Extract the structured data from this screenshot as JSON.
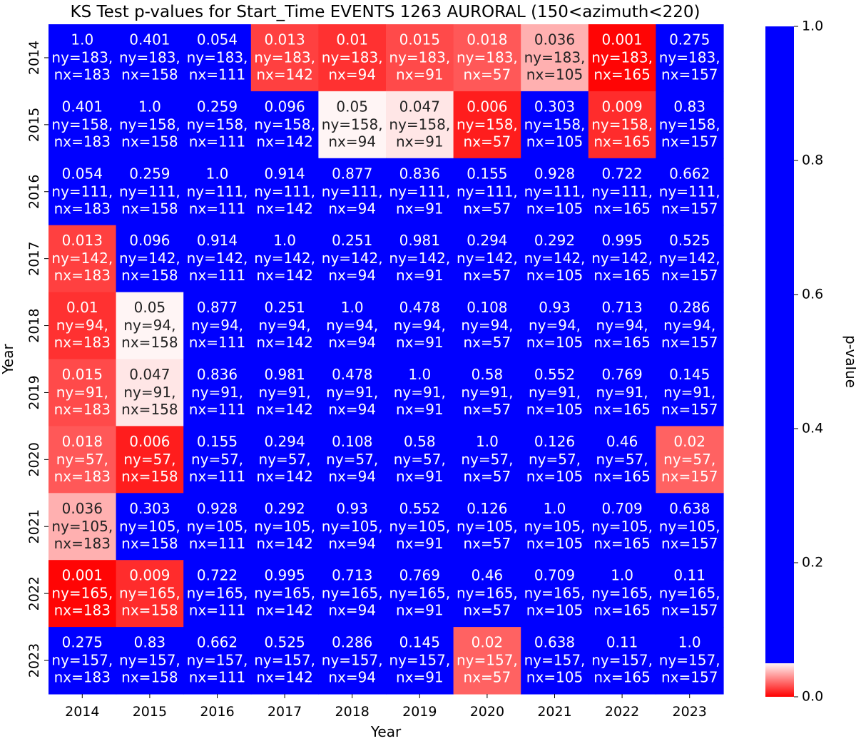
{
  "chart_data": {
    "type": "heatmap",
    "title": "KS Test p-values for Start_Time EVENTS 1263 AURORAL (150<azimuth<220)",
    "xlabel": "Year",
    "ylabel": "Year",
    "x_categories": [
      "2014",
      "2015",
      "2016",
      "2017",
      "2018",
      "2019",
      "2020",
      "2021",
      "2022",
      "2023"
    ],
    "y_categories": [
      "2014",
      "2015",
      "2016",
      "2017",
      "2018",
      "2019",
      "2020",
      "2021",
      "2022",
      "2023"
    ],
    "values": [
      [
        "1.0",
        "0.401",
        "0.054",
        "0.013",
        "0.01",
        "0.015",
        "0.018",
        "0.036",
        "0.001",
        "0.275"
      ],
      [
        "0.401",
        "1.0",
        "0.259",
        "0.096",
        "0.05",
        "0.047",
        "0.006",
        "0.303",
        "0.009",
        "0.83"
      ],
      [
        "0.054",
        "0.259",
        "1.0",
        "0.914",
        "0.877",
        "0.836",
        "0.155",
        "0.928",
        "0.722",
        "0.662"
      ],
      [
        "0.013",
        "0.096",
        "0.914",
        "1.0",
        "0.251",
        "0.981",
        "0.294",
        "0.292",
        "0.995",
        "0.525"
      ],
      [
        "0.01",
        "0.05",
        "0.877",
        "0.251",
        "1.0",
        "0.478",
        "0.108",
        "0.93",
        "0.713",
        "0.286"
      ],
      [
        "0.015",
        "0.047",
        "0.836",
        "0.981",
        "0.478",
        "1.0",
        "0.58",
        "0.552",
        "0.769",
        "0.145"
      ],
      [
        "0.018",
        "0.006",
        "0.155",
        "0.294",
        "0.108",
        "0.58",
        "1.0",
        "0.126",
        "0.46",
        "0.02"
      ],
      [
        "0.036",
        "0.303",
        "0.928",
        "0.292",
        "0.93",
        "0.552",
        "0.126",
        "1.0",
        "0.709",
        "0.638"
      ],
      [
        "0.001",
        "0.009",
        "0.722",
        "0.995",
        "0.713",
        "0.769",
        "0.46",
        "0.709",
        "1.0",
        "0.11"
      ],
      [
        "0.275",
        "0.83",
        "0.662",
        "0.525",
        "0.286",
        "0.145",
        "0.02",
        "0.638",
        "0.11",
        "1.0"
      ]
    ],
    "ny": [
      183,
      158,
      111,
      142,
      94,
      91,
      57,
      105,
      165,
      157
    ],
    "nx": [
      183,
      158,
      111,
      142,
      94,
      91,
      57,
      105,
      165,
      157
    ],
    "colorbar": {
      "label": "p-value",
      "range": [
        0,
        1
      ],
      "ticks": [
        "0.0",
        "0.2",
        "0.4",
        "0.6",
        "0.8",
        "1.0"
      ],
      "threshold": 0.05,
      "low_color": "#ff0000",
      "mid_color": "#fff5f5",
      "high_color": "#0000ff"
    },
    "grid": false
  }
}
